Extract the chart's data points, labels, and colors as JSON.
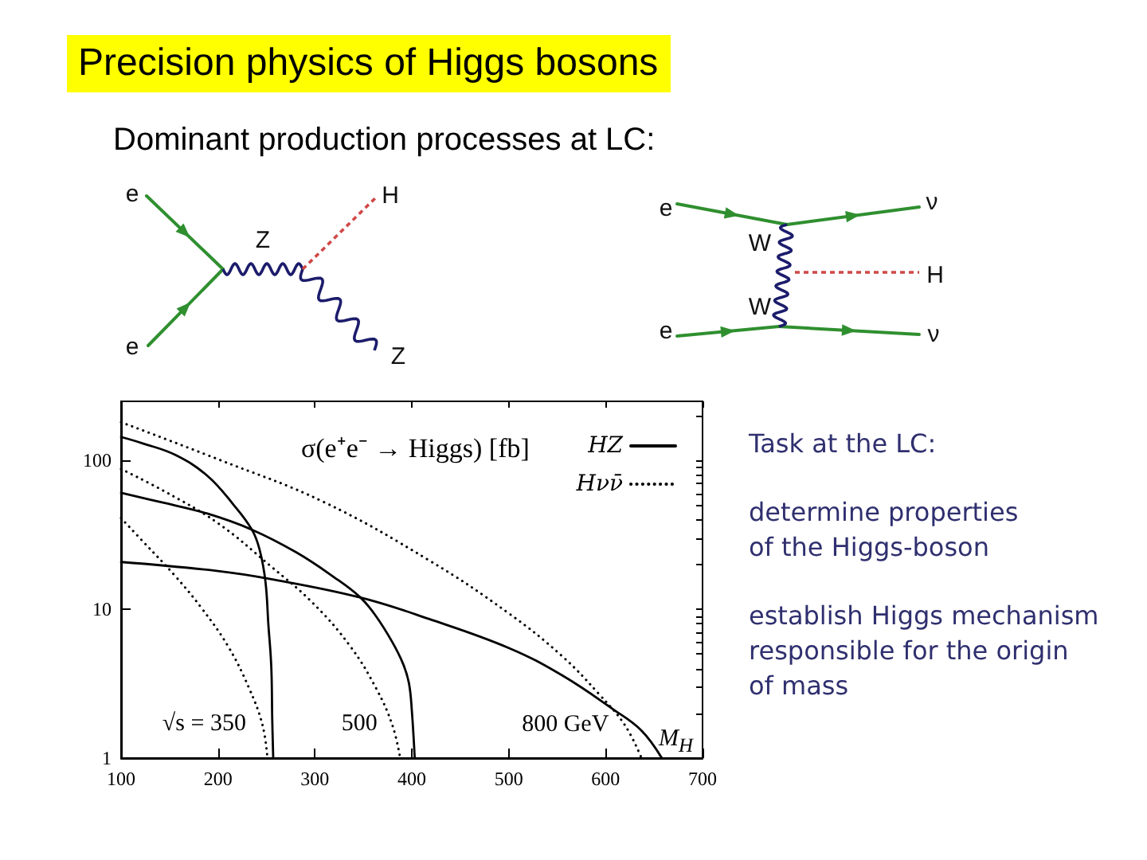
{
  "chart_data": [
    {
      "type": "other",
      "title": "Precision physics of Higgs bosons",
      "subtitle": "Dominant production processes at LC:"
    },
    {
      "type": "other",
      "annotations": [
        "e",
        "H",
        "Z",
        "e",
        "Z"
      ]
    },
    {
      "type": "other",
      "annotations": [
        "e",
        "ν",
        "W",
        "H",
        "W",
        "e",
        "ν"
      ]
    },
    {
      "type": "line",
      "xlabel": "M$_{H}$",
      "ylabel": "σ(e⁺e⁻ → Higgs) [fb]",
      "log": "y",
      "xlim": [
        100,
        700
      ],
      "ylim": [
        1,
        250
      ],
      "xticks": [
        100,
        200,
        300,
        400,
        500,
        600,
        700
      ],
      "yticks": [
        1,
        {
          "value": 2,
          "label": null
        },
        {
          "value": 3,
          "label": null
        },
        {
          "value": 4,
          "label": null
        },
        {
          "value": 5,
          "label": null
        },
        {
          "value": 6,
          "label": null
        },
        {
          "value": 7,
          "label": null
        },
        {
          "value": 8,
          "label": null
        },
        {
          "value": 9,
          "label": null
        },
        10,
        {
          "value": 20,
          "label": null
        },
        {
          "value": 30,
          "label": null
        },
        {
          "value": 40,
          "label": null
        },
        {
          "value": 50,
          "label": null
        },
        {
          "value": 60,
          "label": null
        },
        {
          "value": 70,
          "label": null
        },
        {
          "value": 80,
          "label": null
        },
        {
          "value": 90,
          "label": null
        },
        100,
        {
          "value": 200,
          "label": null
        }
      ],
      "legend": "top right",
      "marker": "none",
      "series": [
        {
          "name": "HZ",
          "color": "#000000",
          "line_style": "solid",
          "x": [
            100,
            123,
            156,
            189,
            216,
            235,
            243,
            249,
            252,
            255,
            256,
            257
          ],
          "values": [
            144,
            130,
            109,
            79,
            50.5,
            34.3,
            25.1,
            15.3,
            7.9,
            4.1,
            1.8,
            1
          ]
        },
        {
          "color": "#000000",
          "line_style": "solid",
          "x": [
            100,
            145,
            189,
            235,
            281,
            320,
            347,
            363,
            380,
            391,
            397,
            400,
            403
          ],
          "values": [
            60.6,
            51.8,
            44,
            34.3,
            24.1,
            16.4,
            12,
            9,
            6,
            4.3,
            3.2,
            2.1,
            1
          ]
        },
        {
          "color": "#000000",
          "line_style": "solid",
          "x": [
            100,
            200,
            254,
            347,
            418,
            500,
            555,
            609,
            637,
            658
          ],
          "values": [
            20.8,
            18.1,
            16,
            12,
            8.6,
            5.5,
            3.6,
            2.1,
            1.53,
            1
          ]
        },
        {
          "name": "Hνν̄",
          "color": "#000000",
          "line_style": "dotted",
          "x": [
            100,
            123,
            156,
            183,
            210,
            232,
            246,
            251
          ],
          "values": [
            41,
            28.4,
            16.7,
            10.2,
            5.7,
            2.96,
            1.66,
            1
          ]
        },
        {
          "color": "#000000",
          "line_style": "dotted",
          "x": [
            100,
            145,
            200,
            254,
            298,
            336,
            363,
            380,
            388
          ],
          "values": [
            87.7,
            62,
            37.9,
            19.6,
            11,
            5.7,
            2.96,
            1.66,
            1
          ]
        },
        {
          "color": "#000000",
          "line_style": "dotted",
          "x": [
            100,
            200,
            309,
            418,
            500,
            555,
            593,
            620,
            637
          ],
          "values": [
            181,
            102,
            52.7,
            21.3,
            9.4,
            4.85,
            2.7,
            1.66,
            1
          ]
        }
      ],
      "annotations": [
        "√s = 350",
        "500",
        "800 GeV"
      ]
    },
    {
      "type": "other",
      "title": "Task at the LC:",
      "annotations": [
        "determine properties\nof the Higgs-boson",
        "establish Higgs mechanism\nresponsible for the origin\nof mass"
      ]
    }
  ]
}
